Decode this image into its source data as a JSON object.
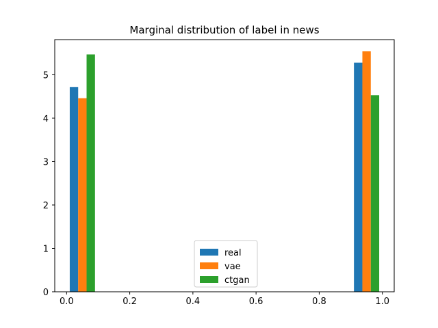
{
  "chart_data": {
    "type": "bar",
    "title": "Marginal distribution of label in news",
    "xlabel": "",
    "ylabel": "",
    "xlim": [
      -0.0375,
      1.0375
    ],
    "ylim": [
      0,
      5.81
    ],
    "xticks": [
      0.0,
      0.2,
      0.4,
      0.6,
      0.8,
      1.0
    ],
    "xtick_labels": [
      "0.0",
      "0.2",
      "0.4",
      "0.6",
      "0.8",
      "1.0"
    ],
    "yticks": [
      0,
      1,
      2,
      3,
      4,
      5
    ],
    "ytick_labels": [
      "0",
      "1",
      "2",
      "3",
      "4",
      "5"
    ],
    "bin_edges": [
      0.0,
      0.1,
      0.9,
      1.0
    ],
    "grid": false,
    "legend_position": "lower center",
    "series": [
      {
        "name": "real",
        "color": "#1f77b4",
        "values": [
          4.72,
          0.0,
          5.28
        ]
      },
      {
        "name": "vae",
        "color": "#ff7f0e",
        "values": [
          4.46,
          0.0,
          5.54
        ]
      },
      {
        "name": "ctgan",
        "color": "#2ca02c",
        "values": [
          5.47,
          0.0,
          4.53
        ]
      }
    ]
  }
}
